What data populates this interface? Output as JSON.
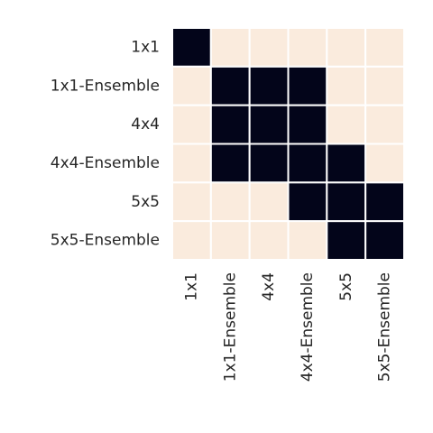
{
  "chart_data": {
    "type": "heatmap",
    "rows": [
      "1x1",
      "1x1-Ensemble",
      "4x4",
      "4x4-Ensemble",
      "5x5",
      "5x5-Ensemble"
    ],
    "columns": [
      "1x1",
      "1x1-Ensemble",
      "4x4",
      "4x4-Ensemble",
      "5x5",
      "5x5-Ensemble"
    ],
    "values": [
      [
        1,
        0,
        0,
        0,
        0,
        0
      ],
      [
        0,
        1,
        1,
        1,
        0,
        0
      ],
      [
        0,
        1,
        1,
        1,
        0,
        0
      ],
      [
        0,
        1,
        1,
        1,
        1,
        0
      ],
      [
        0,
        0,
        0,
        1,
        1,
        1
      ],
      [
        0,
        0,
        0,
        0,
        1,
        1
      ]
    ],
    "colors": [
      "#faebdd",
      "#03051a"
    ]
  }
}
